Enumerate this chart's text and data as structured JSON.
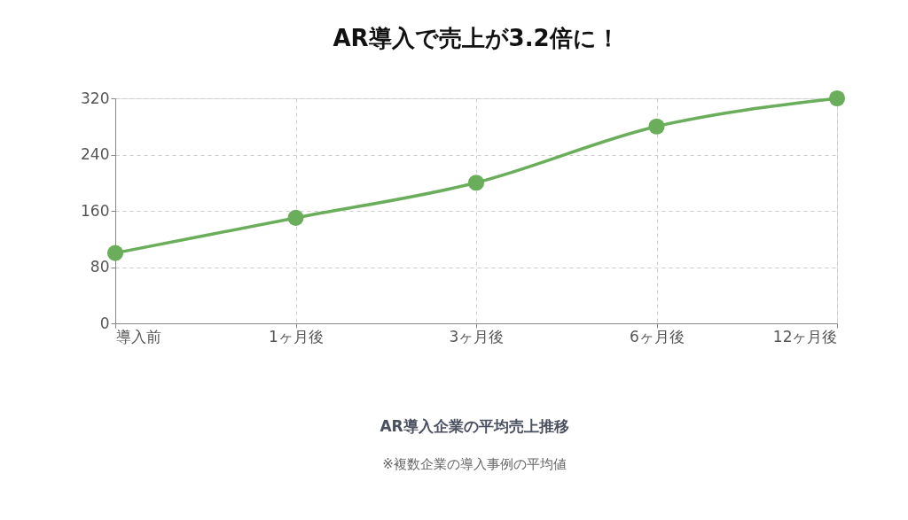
{
  "chart_data": {
    "type": "line",
    "title": "AR導入で売上が3.2倍に！",
    "categories": [
      "導入前",
      "1ヶ月後",
      "3ヶ月後",
      "6ヶ月後",
      "12ヶ月後"
    ],
    "series": [
      {
        "color": "#6aae5b",
        "values": [
          100,
          150,
          200,
          280,
          320
        ]
      }
    ],
    "ylim": [
      0,
      320
    ],
    "yticks": [
      0,
      80,
      160,
      240,
      320
    ],
    "grid": true,
    "marker": "circle",
    "line_style": "solid",
    "annotations": [
      "AR導入企業の平均売上推移",
      "※複数企業の導入事例の平均値"
    ]
  }
}
